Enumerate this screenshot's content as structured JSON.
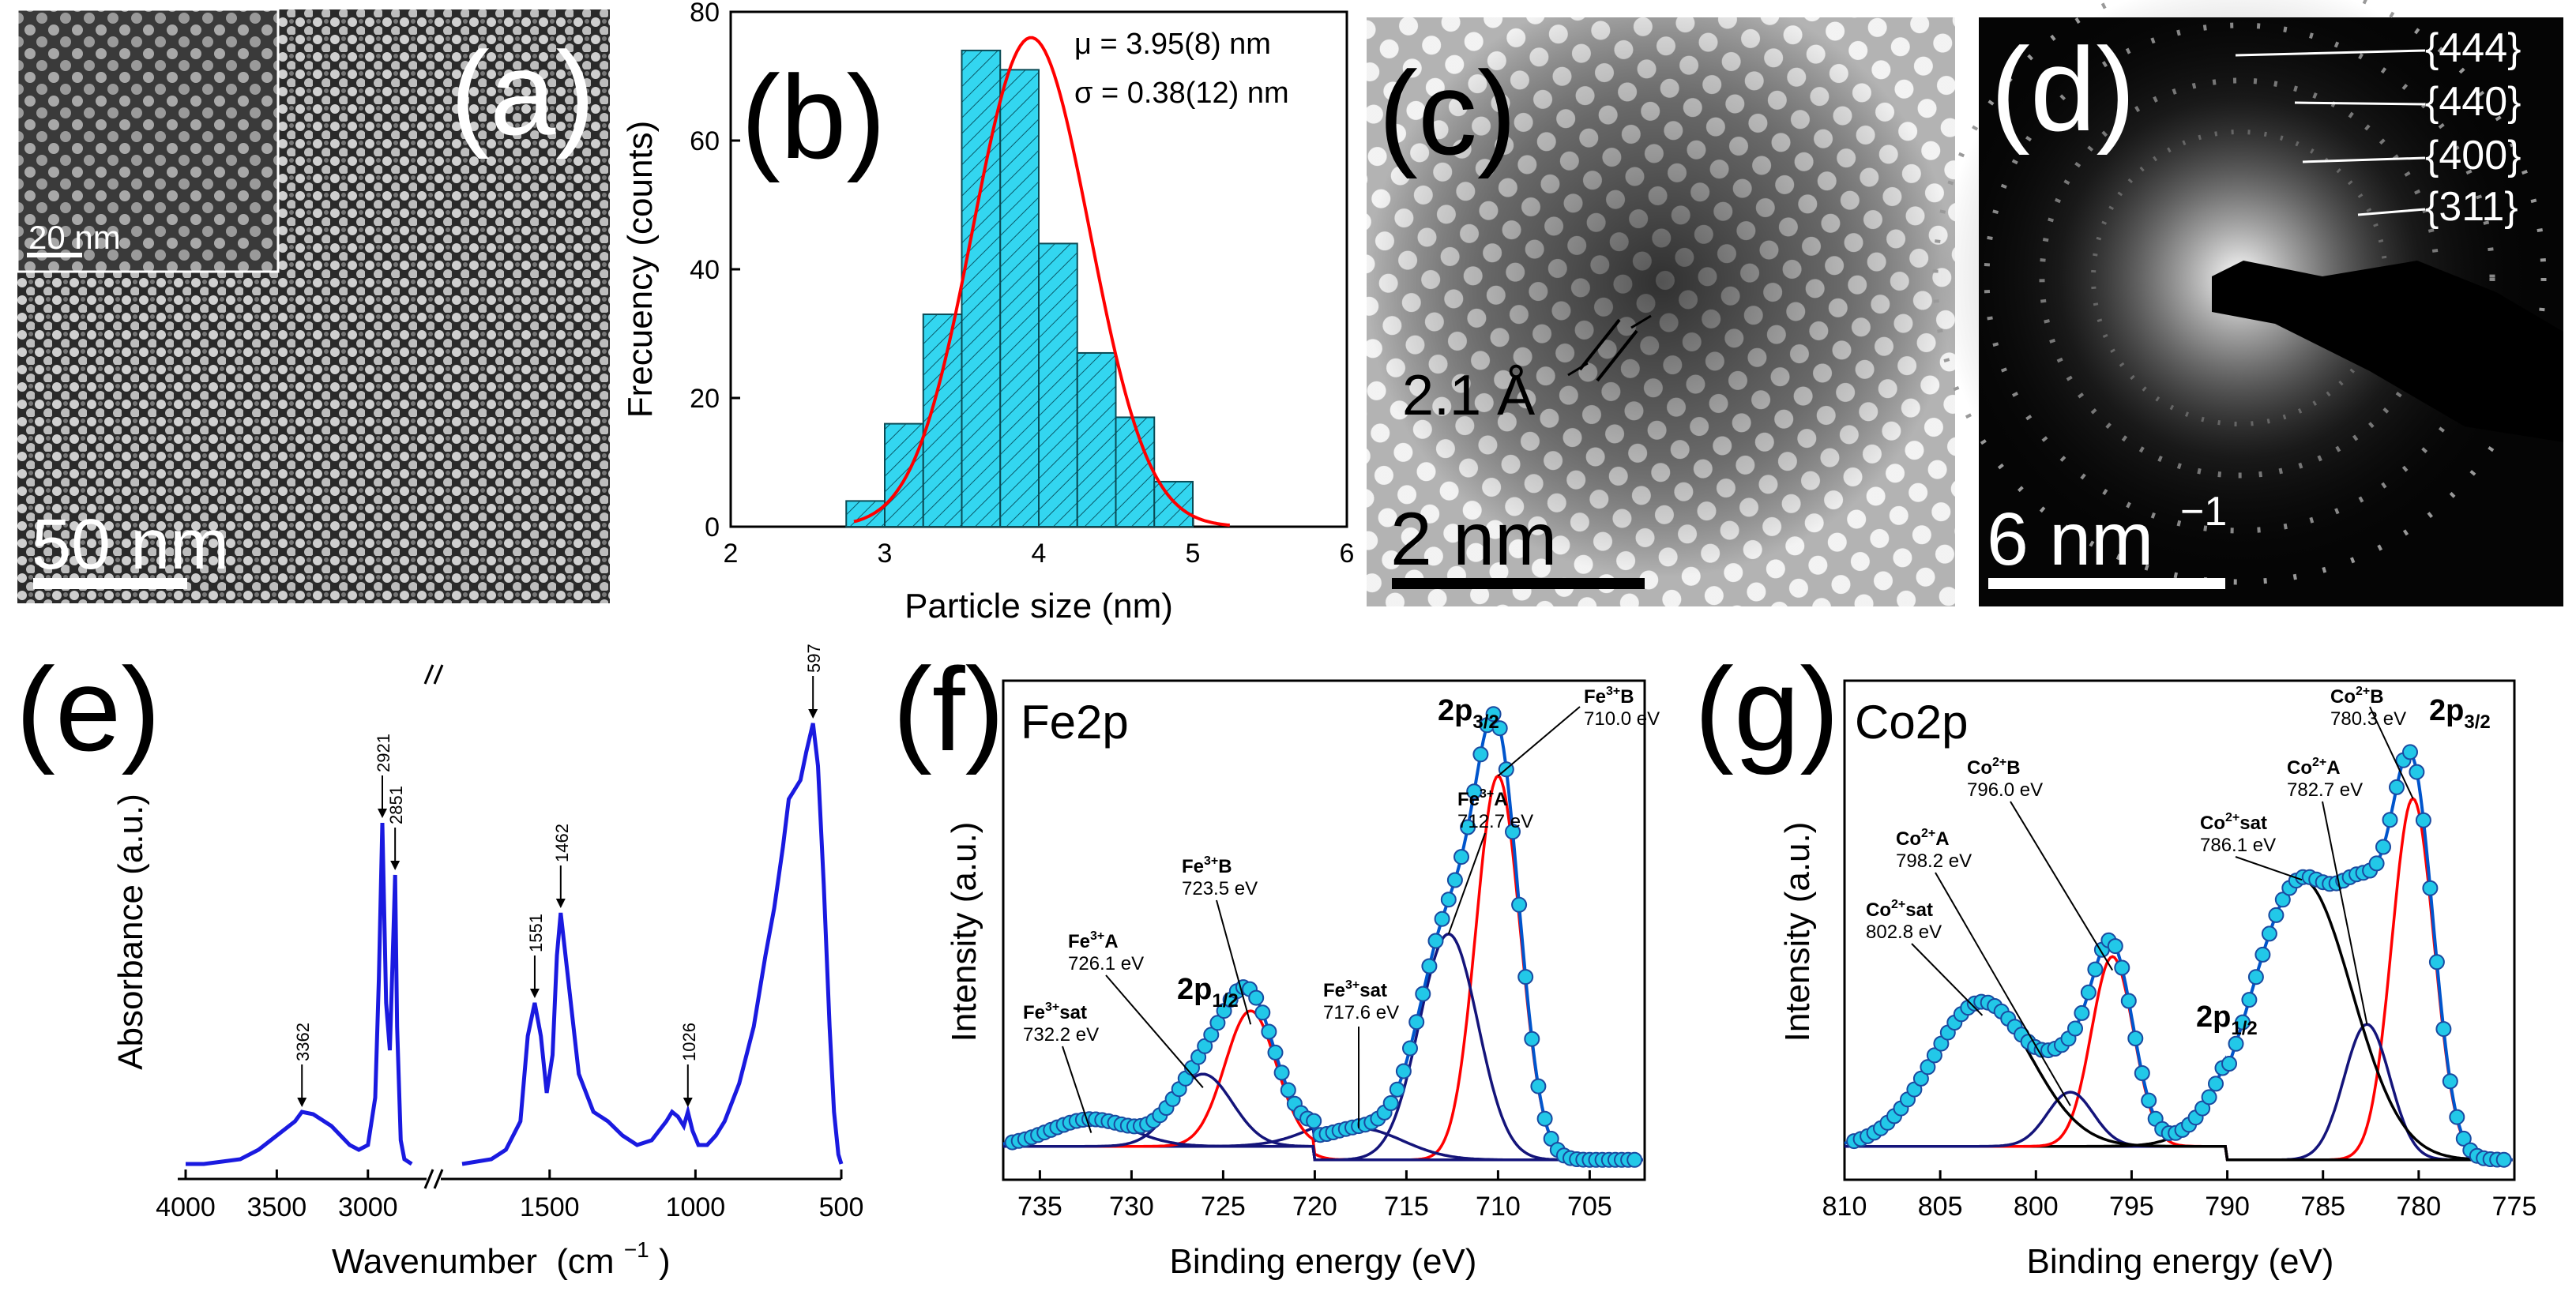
{
  "figure": {
    "panels": {
      "a": {
        "letter": "(a)",
        "scale_main": "50 nm",
        "scale_inset": "20 nm"
      },
      "b": {
        "letter": "(b)",
        "mu": "μ = 3.95(8) nm",
        "sigma": "σ = 0.38(12) nm"
      },
      "c": {
        "letter": "(c)",
        "spacing": "2.1 Å",
        "scale": "2 nm"
      },
      "d": {
        "letter": "(d)",
        "scale": "6 nm",
        "scale_exp": "−1",
        "rings": [
          "{444}",
          "{440}",
          "{400}",
          "{311}"
        ]
      },
      "e": {
        "letter": "(e)"
      },
      "f": {
        "letter": "(f)",
        "element": "Fe2p",
        "main_3_2": "2p",
        "sub_3_2": "3/2",
        "main_1_2": "2p",
        "sub_1_2": "1/2",
        "annotations": [
          {
            "name": "Fe",
            "sup": "3+",
            "site": "B",
            "energy": "710.0 eV"
          },
          {
            "name": "Fe",
            "sup": "3+",
            "site": "A",
            "energy": "712.7 eV"
          },
          {
            "name": "Fe",
            "sup": "3+",
            "site": "sat",
            "energy": "717.6 eV"
          },
          {
            "name": "Fe",
            "sup": "3+",
            "site": "B",
            "energy": "723.5 eV"
          },
          {
            "name": "Fe",
            "sup": "3+",
            "site": "A",
            "energy": "726.1 eV"
          },
          {
            "name": "Fe",
            "sup": "3+",
            "site": "sat",
            "energy": "732.2 eV"
          }
        ]
      },
      "g": {
        "letter": "(g)",
        "element": "Co2p",
        "main_3_2": "2p",
        "sub_3_2": "3/2",
        "main_1_2": "2p",
        "sub_1_2": "1/2",
        "annotations": [
          {
            "name": "Co",
            "sup": "2+",
            "site": "B",
            "energy": "780.3 eV"
          },
          {
            "name": "Co",
            "sup": "2+",
            "site": "A",
            "energy": "782.7 eV"
          },
          {
            "name": "Co",
            "sup": "2+",
            "site": "sat",
            "energy": "786.1 eV"
          },
          {
            "name": "Co",
            "sup": "2+",
            "site": "B",
            "energy": "796.0 eV"
          },
          {
            "name": "Co",
            "sup": "2+",
            "site": "A",
            "energy": "798.2 eV"
          },
          {
            "name": "Co",
            "sup": "2+",
            "site": "sat",
            "energy": "802.8 eV"
          }
        ]
      }
    },
    "colors": {
      "bar_fill": "#33d6f0",
      "fit_red": "#ff0000",
      "ir_blue": "#1a1ae0",
      "navy": "#14147a",
      "data_cyan": "#22c8e8"
    }
  },
  "chart_data": [
    {
      "id": "b",
      "type": "bar",
      "title": "",
      "xlabel": "Particle size (nm)",
      "ylabel": "Frecuency (counts)",
      "xlim": [
        2,
        6
      ],
      "ylim": [
        0,
        80
      ],
      "xticks": [
        2,
        3,
        4,
        5,
        6
      ],
      "yticks": [
        0,
        20,
        40,
        60,
        80
      ],
      "bin_width": 0.25,
      "x": [
        2.875,
        3.125,
        3.375,
        3.625,
        3.875,
        4.125,
        4.375,
        4.625,
        4.875,
        5.125
      ],
      "values": [
        4,
        16,
        33,
        74,
        71,
        44,
        27,
        17,
        7,
        0
      ],
      "fit": {
        "type": "gaussian",
        "mu": 3.95,
        "sigma": 0.38,
        "amplitude": 76,
        "x_range": [
          2.8,
          5.25
        ]
      }
    },
    {
      "id": "e",
      "type": "line",
      "xlabel": "Wavenumber",
      "xlabel_unit": "(cm",
      "xlabel_exp": "−1",
      "xlabel_close": ")",
      "ylabel": "Absorbance (a.u.)",
      "xticks": [
        4000,
        3500,
        3000,
        1500,
        1000,
        500
      ],
      "axis_break": true,
      "peak_labels": [
        {
          "label": "3362",
          "x": 3362,
          "y": 0.12
        },
        {
          "label": "2921",
          "x": 2921,
          "y": 0.73
        },
        {
          "label": "2851",
          "x": 2851,
          "y": 0.62
        },
        {
          "label": "1551",
          "x": 1551,
          "y": 0.35
        },
        {
          "label": "1462",
          "x": 1462,
          "y": 0.54
        },
        {
          "label": "1026",
          "x": 1026,
          "y": 0.12
        },
        {
          "label": "597",
          "x": 597,
          "y": 0.94
        }
      ],
      "series": [
        {
          "name": "FTIR",
          "x": [
            4000,
            3900,
            3800,
            3700,
            3600,
            3500,
            3400,
            3362,
            3300,
            3200,
            3100,
            3050,
            3000,
            2960,
            2940,
            2921,
            2900,
            2880,
            2860,
            2851,
            2840,
            2820,
            2800,
            2760,
            1800,
            1700,
            1650,
            1600,
            1575,
            1551,
            1530,
            1510,
            1490,
            1475,
            1462,
            1440,
            1400,
            1350,
            1300,
            1250,
            1200,
            1150,
            1100,
            1080,
            1060,
            1040,
            1026,
            1010,
            990,
            960,
            930,
            900,
            850,
            800,
            760,
            730,
            700,
            680,
            660,
            640,
            620,
            597,
            580,
            560,
            540,
            525,
            510,
            500
          ],
          "y": [
            0.01,
            0.01,
            0.015,
            0.02,
            0.04,
            0.07,
            0.1,
            0.12,
            0.115,
            0.09,
            0.05,
            0.04,
            0.05,
            0.15,
            0.4,
            0.73,
            0.35,
            0.25,
            0.5,
            0.62,
            0.3,
            0.06,
            0.02,
            0.01,
            0.01,
            0.02,
            0.04,
            0.1,
            0.28,
            0.35,
            0.28,
            0.16,
            0.24,
            0.45,
            0.54,
            0.42,
            0.2,
            0.12,
            0.1,
            0.07,
            0.05,
            0.06,
            0.1,
            0.12,
            0.11,
            0.09,
            0.12,
            0.08,
            0.05,
            0.05,
            0.07,
            0.1,
            0.18,
            0.3,
            0.45,
            0.55,
            0.68,
            0.78,
            0.8,
            0.82,
            0.88,
            0.94,
            0.85,
            0.6,
            0.3,
            0.12,
            0.03,
            0.01
          ]
        }
      ]
    },
    {
      "id": "f",
      "type": "line",
      "xlabel": "Binding energy (eV)",
      "ylabel": "Intensity (a.u.)",
      "xlim": [
        737,
        702
      ],
      "xticks": [
        735,
        730,
        725,
        720,
        715,
        710,
        705
      ],
      "components": [
        {
          "name": "Fe3+ B 2p3/2",
          "center": 710.0,
          "height": 0.85,
          "width": 1.2,
          "color": "red"
        },
        {
          "name": "Fe3+ A 2p3/2",
          "center": 712.7,
          "height": 0.5,
          "width": 1.6,
          "color": "navy"
        },
        {
          "name": "Fe3+ sat",
          "center": 717.6,
          "height": 0.07,
          "width": 2.4,
          "color": "navy"
        },
        {
          "name": "Fe3+ B 2p1/2",
          "center": 723.5,
          "height": 0.3,
          "width": 1.4,
          "color": "red"
        },
        {
          "name": "Fe3+ A 2p1/2",
          "center": 726.1,
          "height": 0.16,
          "width": 1.6,
          "color": "navy"
        },
        {
          "name": "Fe3+ sat",
          "center": 732.2,
          "height": 0.06,
          "width": 2.2,
          "color": "navy"
        }
      ]
    },
    {
      "id": "g",
      "type": "line",
      "xlabel": "Binding energy (eV)",
      "ylabel": "Intensity (a.u.)",
      "xlim": [
        810,
        775
      ],
      "xticks": [
        810,
        805,
        800,
        795,
        790,
        785,
        780,
        775
      ],
      "components": [
        {
          "name": "Co2+ B 2p3/2",
          "center": 780.3,
          "height": 0.8,
          "width": 1.1,
          "color": "red"
        },
        {
          "name": "Co2+ A 2p3/2",
          "center": 782.7,
          "height": 0.3,
          "width": 1.2,
          "color": "navy"
        },
        {
          "name": "Co2+ sat",
          "center": 786.1,
          "height": 0.62,
          "width": 2.6,
          "color": "black"
        },
        {
          "name": "Co2+ B 2p1/2",
          "center": 796.0,
          "height": 0.42,
          "width": 1.1,
          "color": "red"
        },
        {
          "name": "Co2+ A 2p1/2",
          "center": 798.2,
          "height": 0.12,
          "width": 1.2,
          "color": "navy"
        },
        {
          "name": "Co2+ sat",
          "center": 802.8,
          "height": 0.32,
          "width": 2.6,
          "color": "black"
        }
      ]
    }
  ]
}
